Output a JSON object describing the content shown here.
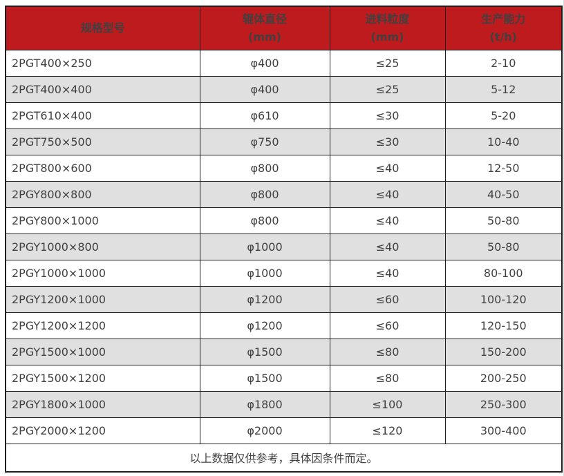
{
  "colors": {
    "header_bg": "#be1b1e",
    "header_text": "#ffffff",
    "stripe_gray": "#e0e0e0",
    "grid_border": "#1e1e1e",
    "body_text": "#404040"
  },
  "table": {
    "headers": [
      {
        "label": "规格型号",
        "unit": ""
      },
      {
        "label": "辊体直径",
        "unit": "(mm)"
      },
      {
        "label": "进料粒度",
        "unit": "(mm)"
      },
      {
        "label": "生产能力",
        "unit": "(t/h)"
      }
    ],
    "rows": [
      {
        "model": "2PGT400×250",
        "diameter": "φ400",
        "feed": "≤25",
        "capacity": "2-10"
      },
      {
        "model": "2PGT400×400",
        "diameter": "φ400",
        "feed": "≤25",
        "capacity": "5-12"
      },
      {
        "model": "2PGT610×400",
        "diameter": "φ610",
        "feed": "≤30",
        "capacity": "5-20"
      },
      {
        "model": "2PGT750×500",
        "diameter": "φ750",
        "feed": "≤30",
        "capacity": "10-40"
      },
      {
        "model": "2PGT800×600",
        "diameter": "φ800",
        "feed": "≤40",
        "capacity": "12-50"
      },
      {
        "model": "2PGY800×800",
        "diameter": "φ800",
        "feed": "≤40",
        "capacity": "40-50"
      },
      {
        "model": "2PGY800×1000",
        "diameter": "φ800",
        "feed": "≤40",
        "capacity": "50-80"
      },
      {
        "model": "2PGY1000×800",
        "diameter": "φ1000",
        "feed": "≤40",
        "capacity": "50-80"
      },
      {
        "model": "2PGY1000×1000",
        "diameter": "φ1000",
        "feed": "≤40",
        "capacity": "80-100"
      },
      {
        "model": "2PGY1200×1000",
        "diameter": "φ1200",
        "feed": "≤60",
        "capacity": "100-120"
      },
      {
        "model": "2PGY1200×1200",
        "diameter": "φ1200",
        "feed": "≤60",
        "capacity": "120-150"
      },
      {
        "model": "2PGY1500×1000",
        "diameter": "φ1500",
        "feed": "≤80",
        "capacity": "150-200"
      },
      {
        "model": "2PGY1500×1200",
        "diameter": "φ1500",
        "feed": "≤80",
        "capacity": "200-250"
      },
      {
        "model": "2PGY1800×1000",
        "diameter": "φ1800",
        "feed": "≤100",
        "capacity": "250-300"
      },
      {
        "model": "2PGY2000×1200",
        "diameter": "φ2000",
        "feed": "≤120",
        "capacity": "300-400"
      }
    ],
    "note": "以上数据仅供参考，具体因条件而定。"
  }
}
